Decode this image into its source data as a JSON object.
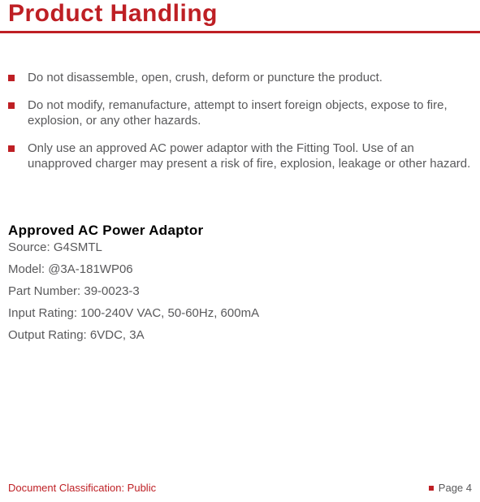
{
  "title": "Product Handling",
  "title_color": "#be1f24",
  "title_fontsize": 30,
  "underline_color": "#be1f24",
  "bullets": [
    "Do not disassemble, open, crush, deform or puncture the product.",
    "Do not modify, remanufacture, attempt to insert foreign objects, expose to fire, explosion, or any other hazards.",
    "Only use an approved AC power adaptor with the Fitting Tool. Use of an unapproved charger may present a risk of fire, explosion, leakage or other hazard."
  ],
  "bullet_marker_color": "#be1f24",
  "bullet_text_color": "#59595b",
  "section_heading": "Approved AC Power Adaptor",
  "specs": [
    "Source: G4SMTL",
    "Model: @3A-181WP06",
    "Part Number: 39-0023-3",
    "Input Rating: 100-240V VAC, 50-60Hz, 600mA",
    "Output Rating: 6VDC, 3A"
  ],
  "footer": {
    "left": "Document Classification: Public",
    "right": "Page 4",
    "left_color": "#be1f24",
    "right_color": "#59595b"
  },
  "background_color": "#ffffff"
}
